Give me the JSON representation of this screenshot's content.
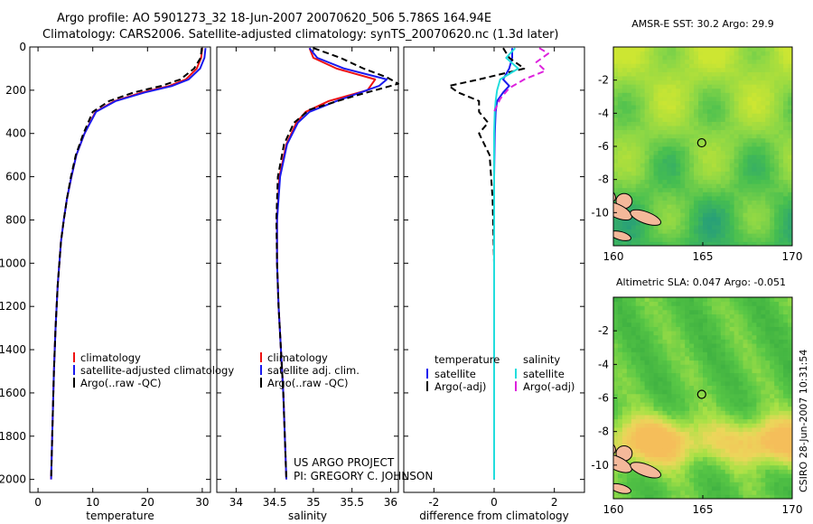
{
  "header": {
    "line1": "Argo profile: AO 5901273_32 18-Jun-2007 20070620_506 5.786S 164.94E",
    "line2": "Climatology: CARS2006. Satellite-adjusted climatology: synTS_20070620.nc (1.3d later)"
  },
  "footer": {
    "project": "US ARGO PROJECT",
    "pi": "PI: GREGORY C. JOHNSON",
    "stamp": "CSIRO 28-Jun-2007 10:31:54"
  },
  "colors": {
    "climatology": "#ee1111",
    "satellite": "#1a1aee",
    "argo": "#000000",
    "sal_satellite": "#22dddd",
    "sal_argo": "#dd22dd",
    "land": "#f4b89a",
    "marker": "#000000"
  },
  "chart_data": [
    {
      "type": "line",
      "id": "temperature",
      "xlabel": "temperature",
      "ylabel": "",
      "xlim": [
        -1.5,
        31.5
      ],
      "ylim": [
        0,
        2060
      ],
      "y_inverted": true,
      "xticks": [
        0,
        10,
        20,
        30
      ],
      "yticks": [
        0,
        200,
        400,
        600,
        800,
        1000,
        1200,
        1400,
        1600,
        1800,
        2000
      ],
      "legend": {
        "position": "lower-right",
        "entries": [
          "climatology",
          "satellite-adjusted climatology",
          "Argo(..raw -QC)"
        ]
      },
      "series": [
        {
          "name": "climatology",
          "color_key": "climatology",
          "dash": "solid",
          "x": [
            30.0,
            29.8,
            29.0,
            27.0,
            24.0,
            19.0,
            14.0,
            10.5,
            8.5,
            7.0,
            6.1,
            5.3,
            4.7,
            4.2,
            3.6,
            3.2,
            2.9,
            2.6,
            2.4
          ],
          "y": [
            5,
            50,
            100,
            150,
            180,
            210,
            250,
            300,
            400,
            500,
            600,
            700,
            800,
            900,
            1100,
            1300,
            1500,
            1800,
            2000
          ]
        },
        {
          "name": "satellite-adjusted climatology",
          "color_key": "satellite",
          "dash": "solid",
          "x": [
            30.6,
            30.4,
            29.6,
            27.5,
            24.5,
            19.5,
            14.2,
            10.6,
            8.5,
            7.0,
            6.1,
            5.3,
            4.7,
            4.2,
            3.6,
            3.2,
            2.9,
            2.6,
            2.4
          ],
          "y": [
            5,
            50,
            100,
            150,
            180,
            210,
            250,
            300,
            400,
            500,
            600,
            700,
            800,
            900,
            1100,
            1300,
            1500,
            1800,
            2000
          ]
        },
        {
          "name": "Argo(..raw -QC)",
          "color_key": "argo",
          "dash": "dashed",
          "x": [
            29.9,
            29.7,
            28.5,
            26.0,
            22.5,
            17.5,
            13.0,
            10.0,
            8.3,
            6.9,
            6.0,
            5.3,
            4.7,
            4.2,
            3.6,
            3.2,
            2.9,
            2.6,
            2.4
          ],
          "y": [
            5,
            50,
            100,
            150,
            180,
            210,
            250,
            300,
            400,
            500,
            600,
            700,
            800,
            900,
            1100,
            1300,
            1500,
            1800,
            2000
          ]
        }
      ]
    },
    {
      "type": "line",
      "id": "salinity",
      "xlabel": "salinity",
      "ylabel": "",
      "xlim": [
        33.75,
        36.1
      ],
      "ylim": [
        0,
        2060
      ],
      "y_inverted": true,
      "xticks": [
        34,
        34.5,
        35,
        35.5,
        36
      ],
      "legend": {
        "position": "lower-right",
        "entries": [
          "climatology",
          "satellite adj. clim.",
          "Argo(..raw -QC)"
        ]
      },
      "series": [
        {
          "name": "climatology",
          "color_key": "climatology",
          "dash": "solid",
          "x": [
            34.95,
            35.0,
            35.3,
            35.8,
            35.7,
            35.2,
            34.9,
            34.78,
            34.65,
            34.56,
            34.53,
            34.53,
            34.55,
            34.58,
            34.61,
            34.63,
            34.65
          ],
          "y": [
            5,
            50,
            100,
            150,
            200,
            250,
            300,
            350,
            450,
            600,
            800,
            1000,
            1200,
            1400,
            1600,
            1800,
            2000
          ]
        },
        {
          "name": "satellite adj. clim.",
          "color_key": "satellite",
          "dash": "solid",
          "x": [
            34.95,
            35.05,
            35.4,
            35.95,
            35.85,
            35.3,
            34.95,
            34.8,
            34.66,
            34.57,
            34.53,
            34.53,
            34.55,
            34.58,
            34.61,
            34.63,
            34.65
          ],
          "y": [
            5,
            50,
            100,
            150,
            180,
            250,
            300,
            350,
            450,
            600,
            800,
            1000,
            1200,
            1400,
            1600,
            1800,
            2000
          ]
        },
        {
          "name": "Argo(..raw -QC)",
          "color_key": "argo",
          "dash": "dashed",
          "x": [
            35.0,
            35.35,
            35.65,
            35.95,
            36.1,
            35.5,
            34.95,
            34.75,
            34.62,
            34.54,
            34.52,
            34.53,
            34.55,
            34.58,
            34.61,
            34.63,
            34.65
          ],
          "y": [
            5,
            50,
            100,
            140,
            170,
            230,
            290,
            350,
            450,
            600,
            800,
            1000,
            1200,
            1400,
            1600,
            1800,
            2000
          ]
        }
      ]
    },
    {
      "type": "line",
      "id": "difference",
      "xlabel": "difference from climatology",
      "ylabel": "",
      "xlim": [
        -3.0,
        3.0
      ],
      "ylim": [
        0,
        2060
      ],
      "y_inverted": true,
      "xticks": [
        -2,
        0,
        2
      ],
      "legend": {
        "position": "lower-center",
        "columns": [
          {
            "heading": "temperature",
            "entries": [
              "satellite",
              "Argo(-adj)"
            ]
          },
          {
            "heading": "salinity",
            "entries": [
              "satellite",
              "Argo(-adj)"
            ]
          }
        ]
      },
      "series": [
        {
          "name": "temperature satellite",
          "color_key": "satellite",
          "dash": "solid",
          "x": [
            0.6,
            0.6,
            0.5,
            0.3,
            0.5,
            0.3,
            0.1,
            0.05,
            0.02,
            0.0,
            0.0,
            0.0
          ],
          "y": [
            5,
            50,
            100,
            150,
            180,
            210,
            250,
            300,
            400,
            600,
            1000,
            2000
          ]
        },
        {
          "name": "temperature Argo(-adj)",
          "color_key": "argo",
          "dash": "dashed",
          "x": [
            0.3,
            0.5,
            1.0,
            -0.5,
            -1.5,
            -1.2,
            -0.5,
            -0.5,
            -0.2,
            -0.5,
            -0.15,
            -0.05,
            0.0,
            0.0
          ],
          "y": [
            5,
            50,
            100,
            150,
            180,
            210,
            250,
            300,
            350,
            400,
            500,
            700,
            1000,
            2000
          ]
        },
        {
          "name": "salinity satellite",
          "color_key": "sal_satellite",
          "dash": "solid",
          "x": [
            0.7,
            0.4,
            0.8,
            0.2,
            0.1,
            0.05,
            0.02,
            0.0,
            0.0,
            0.0,
            0.0
          ],
          "y": [
            5,
            50,
            100,
            150,
            200,
            250,
            300,
            400,
            600,
            1000,
            2000
          ]
        },
        {
          "name": "salinity Argo(-adj)",
          "color_key": "sal_argo",
          "dash": "dashed",
          "x": [
            1.5,
            1.8,
            1.4,
            1.7,
            1.0,
            0.5,
            0.2,
            0.0
          ],
          "y": [
            5,
            30,
            70,
            110,
            150,
            190,
            240,
            300
          ]
        }
      ]
    },
    {
      "type": "heatmap",
      "id": "sst_map",
      "title": "AMSR-E SST: 30.2  Argo: 29.9",
      "xlim": [
        160,
        170
      ],
      "ylim": [
        -12,
        0
      ],
      "xticks": [
        160,
        165,
        170
      ],
      "yticks": [
        -2,
        -4,
        -6,
        -8,
        -10
      ],
      "field": "sea surface temperature",
      "argo_position": {
        "lon": 164.94,
        "lat": -5.786
      }
    },
    {
      "type": "heatmap",
      "id": "sla_map",
      "title": "Altimetric SLA: 0.047  Argo: -0.051",
      "xlim": [
        160,
        170
      ],
      "ylim": [
        -12,
        0
      ],
      "xticks": [
        160,
        165,
        170
      ],
      "yticks": [
        -2,
        -4,
        -6,
        -8,
        -10
      ],
      "field": "sea level anomaly",
      "argo_position": {
        "lon": 164.94,
        "lat": -5.786
      }
    }
  ]
}
